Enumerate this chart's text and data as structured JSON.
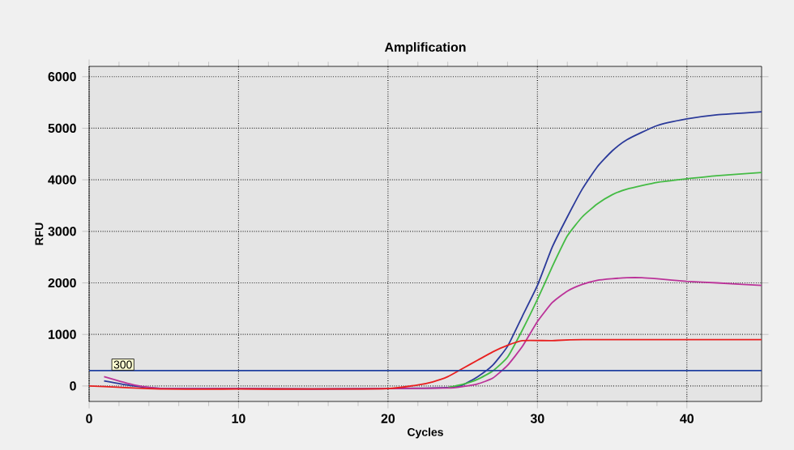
{
  "chart_data": {
    "type": "line",
    "title": "Amplification",
    "xlabel": "Cycles",
    "ylabel": "RFU",
    "xlim": [
      0,
      45
    ],
    "ylim": [
      -300,
      6200
    ],
    "xticks": [
      0,
      10,
      20,
      30,
      40
    ],
    "yticks": [
      0,
      1000,
      2000,
      3000,
      4000,
      5000,
      6000
    ],
    "grid": true,
    "marker": "none",
    "line_style": "solid",
    "ref_lines": [
      {
        "axis": "y",
        "value": 300,
        "label": "300",
        "color": "#2040a0"
      }
    ],
    "series": [
      {
        "color": "#2b3a9a",
        "x": [
          1,
          3,
          5,
          10,
          15,
          20,
          24,
          25,
          26,
          27,
          28,
          29,
          30,
          31,
          32,
          33,
          34,
          35,
          36,
          38,
          40,
          42,
          45
        ],
        "values": [
          100,
          0,
          -50,
          -50,
          -60,
          -50,
          -30,
          20,
          180,
          400,
          770,
          1360,
          1950,
          2700,
          3280,
          3820,
          4250,
          4560,
          4780,
          5050,
          5180,
          5260,
          5320
        ]
      },
      {
        "color": "#44bb44",
        "x": [
          24,
          25,
          26,
          27,
          28,
          29,
          30,
          31,
          32,
          33,
          34,
          35,
          36,
          38,
          40,
          42,
          45
        ],
        "values": [
          -30,
          30,
          130,
          290,
          560,
          1090,
          1680,
          2320,
          2910,
          3280,
          3530,
          3710,
          3820,
          3950,
          4020,
          4080,
          4140
        ]
      },
      {
        "color": "#bb3399",
        "x": [
          1,
          3,
          5,
          10,
          15,
          20,
          24,
          25,
          26,
          27,
          28,
          29,
          30,
          31,
          32,
          33,
          34,
          35,
          36,
          37,
          38,
          40,
          42,
          45
        ],
        "values": [
          180,
          20,
          -50,
          -50,
          -60,
          -50,
          -40,
          -10,
          40,
          150,
          400,
          770,
          1250,
          1620,
          1840,
          1970,
          2050,
          2080,
          2100,
          2100,
          2080,
          2030,
          2000,
          1950
        ]
      },
      {
        "color": "#e82020",
        "x": [
          0,
          5,
          10,
          15,
          20,
          22,
          23,
          24,
          25,
          26,
          27,
          28,
          29,
          31,
          33,
          45
        ],
        "values": [
          0,
          -60,
          -60,
          -60,
          -50,
          20,
          80,
          180,
          340,
          500,
          660,
          790,
          880,
          880,
          900,
          900
        ]
      }
    ]
  }
}
